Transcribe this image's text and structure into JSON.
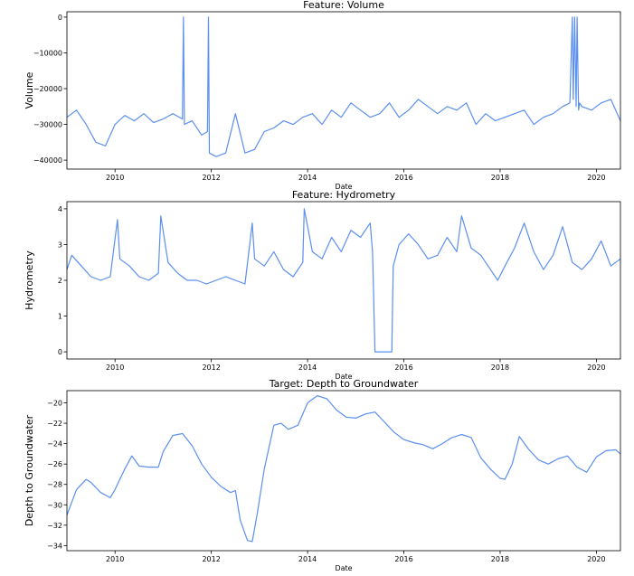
{
  "chart_data": [
    {
      "type": "line",
      "title": "Feature: Volume",
      "xlabel": "Date",
      "ylabel": "Volume",
      "color": "#5b8ff0",
      "xlim": [
        2009.0,
        2020.5
      ],
      "ylim": [
        -42500,
        1500
      ],
      "xticks": [
        2010,
        2012,
        2014,
        2016,
        2018,
        2020
      ],
      "yticks": [
        0,
        -10000,
        -20000,
        -30000,
        -40000
      ],
      "ytick_labels": [
        "0",
        "−10000",
        "−20000",
        "−30000",
        "−40000"
      ],
      "series": [
        {
          "x": [
            2009.0,
            2009.2,
            2009.4,
            2009.6,
            2009.8,
            2010.0,
            2010.2,
            2010.4,
            2010.6,
            2010.8,
            2011.0,
            2011.2,
            2011.4,
            2011.42,
            2011.44,
            2011.6,
            2011.8,
            2011.92,
            2011.94,
            2011.96,
            2012.1,
            2012.3,
            2012.5,
            2012.7,
            2012.9,
            2013.1,
            2013.3,
            2013.5,
            2013.7,
            2013.9,
            2014.1,
            2014.3,
            2014.5,
            2014.7,
            2014.9,
            2015.1,
            2015.3,
            2015.5,
            2015.7,
            2015.9,
            2016.1,
            2016.3,
            2016.5,
            2016.7,
            2016.9,
            2017.1,
            2017.3,
            2017.5,
            2017.7,
            2017.9,
            2018.1,
            2018.3,
            2018.5,
            2018.7,
            2018.9,
            2019.1,
            2019.3,
            2019.45,
            2019.5,
            2019.52,
            2019.55,
            2019.58,
            2019.6,
            2019.63,
            2019.65,
            2019.7,
            2019.9,
            2020.1,
            2020.3,
            2020.5
          ],
          "y": [
            -28000,
            -26000,
            -30000,
            -35000,
            -36000,
            -30000,
            -27500,
            -29000,
            -27000,
            -29500,
            -28500,
            -27000,
            -28500,
            0,
            -30000,
            -29000,
            -33000,
            -32000,
            0,
            -38000,
            -39000,
            -38000,
            -27000,
            -38000,
            -37000,
            -32000,
            -31000,
            -29000,
            -30000,
            -28000,
            -27000,
            -30000,
            -26000,
            -28000,
            -24000,
            -26000,
            -28000,
            -27000,
            -24000,
            -28000,
            -26000,
            -23000,
            -25000,
            -27000,
            -25000,
            -26000,
            -24000,
            -30000,
            -27000,
            -29000,
            -28000,
            -27000,
            -26000,
            -30000,
            -28000,
            -27000,
            -25000,
            -24000,
            0,
            -23000,
            0,
            -25000,
            0,
            -26000,
            -24000,
            -25000,
            -26000,
            -24000,
            -23000,
            -29000
          ]
        }
      ]
    },
    {
      "type": "line",
      "title": "Feature: Hydrometry",
      "xlabel": "Date",
      "ylabel": "Hydrometry",
      "color": "#5b8ff0",
      "xlim": [
        2009.0,
        2020.5
      ],
      "ylim": [
        -0.2,
        4.2
      ],
      "xticks": [
        2010,
        2012,
        2014,
        2016,
        2018,
        2020
      ],
      "yticks": [
        0,
        1,
        2,
        3,
        4
      ],
      "ytick_labels": [
        "0",
        "1",
        "2",
        "3",
        "4"
      ],
      "series": [
        {
          "x": [
            2009.0,
            2009.1,
            2009.3,
            2009.5,
            2009.7,
            2009.9,
            2010.05,
            2010.1,
            2010.3,
            2010.5,
            2010.7,
            2010.9,
            2010.95,
            2011.1,
            2011.3,
            2011.5,
            2011.7,
            2011.9,
            2012.1,
            2012.3,
            2012.5,
            2012.7,
            2012.85,
            2012.9,
            2013.1,
            2013.3,
            2013.5,
            2013.7,
            2013.9,
            2013.93,
            2014.1,
            2014.3,
            2014.5,
            2014.7,
            2014.9,
            2015.1,
            2015.3,
            2015.35,
            2015.4,
            2015.6,
            2015.75,
            2015.78,
            2015.9,
            2016.1,
            2016.3,
            2016.5,
            2016.7,
            2016.9,
            2017.1,
            2017.2,
            2017.4,
            2017.6,
            2017.8,
            2017.95,
            2018.1,
            2018.3,
            2018.5,
            2018.7,
            2018.9,
            2019.1,
            2019.3,
            2019.5,
            2019.7,
            2019.9,
            2020.1,
            2020.3,
            2020.5
          ],
          "y": [
            2.3,
            2.7,
            2.4,
            2.1,
            2.0,
            2.1,
            3.7,
            2.6,
            2.4,
            2.1,
            2.0,
            2.2,
            3.8,
            2.5,
            2.2,
            2.0,
            2.0,
            1.9,
            2.0,
            2.1,
            2.0,
            1.9,
            3.6,
            2.6,
            2.4,
            2.8,
            2.3,
            2.1,
            2.5,
            4.0,
            2.8,
            2.6,
            3.2,
            2.8,
            3.4,
            3.2,
            3.6,
            2.8,
            0.0,
            0.0,
            0.0,
            2.4,
            3.0,
            3.3,
            3.0,
            2.6,
            2.7,
            3.2,
            2.8,
            3.8,
            2.9,
            2.7,
            2.3,
            2.0,
            2.4,
            2.9,
            3.6,
            2.8,
            2.3,
            2.7,
            3.5,
            2.5,
            2.3,
            2.6,
            3.1,
            2.4,
            2.6
          ]
        }
      ]
    },
    {
      "type": "line",
      "title": "Target: Depth to Groundwater",
      "xlabel": "Date",
      "ylabel": "Depth to Groundwater",
      "color": "#5b8ff0",
      "xlim": [
        2009.0,
        2020.5
      ],
      "ylim": [
        -34.5,
        -18.8
      ],
      "xticks": [
        2010,
        2012,
        2014,
        2016,
        2018,
        2020
      ],
      "yticks": [
        -20,
        -22,
        -24,
        -26,
        -28,
        -30,
        -32,
        -34
      ],
      "ytick_labels": [
        "−20",
        "−22",
        "−24",
        "−26",
        "−28",
        "−30",
        "−32",
        "−34"
      ],
      "series": [
        {
          "x": [
            2009.0,
            2009.2,
            2009.4,
            2009.5,
            2009.7,
            2009.9,
            2010.0,
            2010.2,
            2010.35,
            2010.5,
            2010.7,
            2010.9,
            2011.0,
            2011.2,
            2011.4,
            2011.6,
            2011.8,
            2012.0,
            2012.2,
            2012.4,
            2012.5,
            2012.6,
            2012.75,
            2012.85,
            2012.95,
            2013.1,
            2013.3,
            2013.45,
            2013.6,
            2013.8,
            2014.0,
            2014.2,
            2014.4,
            2014.6,
            2014.8,
            2015.0,
            2015.2,
            2015.4,
            2015.6,
            2015.8,
            2016.0,
            2016.2,
            2016.4,
            2016.6,
            2016.8,
            2017.0,
            2017.2,
            2017.4,
            2017.6,
            2017.8,
            2018.0,
            2018.1,
            2018.25,
            2018.4,
            2018.6,
            2018.8,
            2019.0,
            2019.2,
            2019.4,
            2019.6,
            2019.8,
            2020.0,
            2020.2,
            2020.4,
            2020.5
          ],
          "y": [
            -31.0,
            -28.5,
            -27.5,
            -27.8,
            -28.8,
            -29.3,
            -28.5,
            -26.5,
            -25.2,
            -26.2,
            -26.3,
            -26.3,
            -24.8,
            -23.2,
            -23.0,
            -24.2,
            -26.0,
            -27.3,
            -28.2,
            -28.8,
            -28.6,
            -31.5,
            -33.5,
            -33.6,
            -31.0,
            -26.5,
            -22.2,
            -22.0,
            -22.6,
            -22.2,
            -20.0,
            -19.3,
            -19.6,
            -20.7,
            -21.4,
            -21.5,
            -21.1,
            -20.9,
            -21.9,
            -22.9,
            -23.6,
            -23.9,
            -24.1,
            -24.5,
            -24.0,
            -23.4,
            -23.1,
            -23.4,
            -25.4,
            -26.5,
            -27.4,
            -27.5,
            -26.0,
            -23.3,
            -24.6,
            -25.6,
            -26.0,
            -25.5,
            -25.2,
            -26.3,
            -26.8,
            -25.3,
            -24.7,
            -24.6,
            -25.0
          ]
        }
      ]
    }
  ]
}
